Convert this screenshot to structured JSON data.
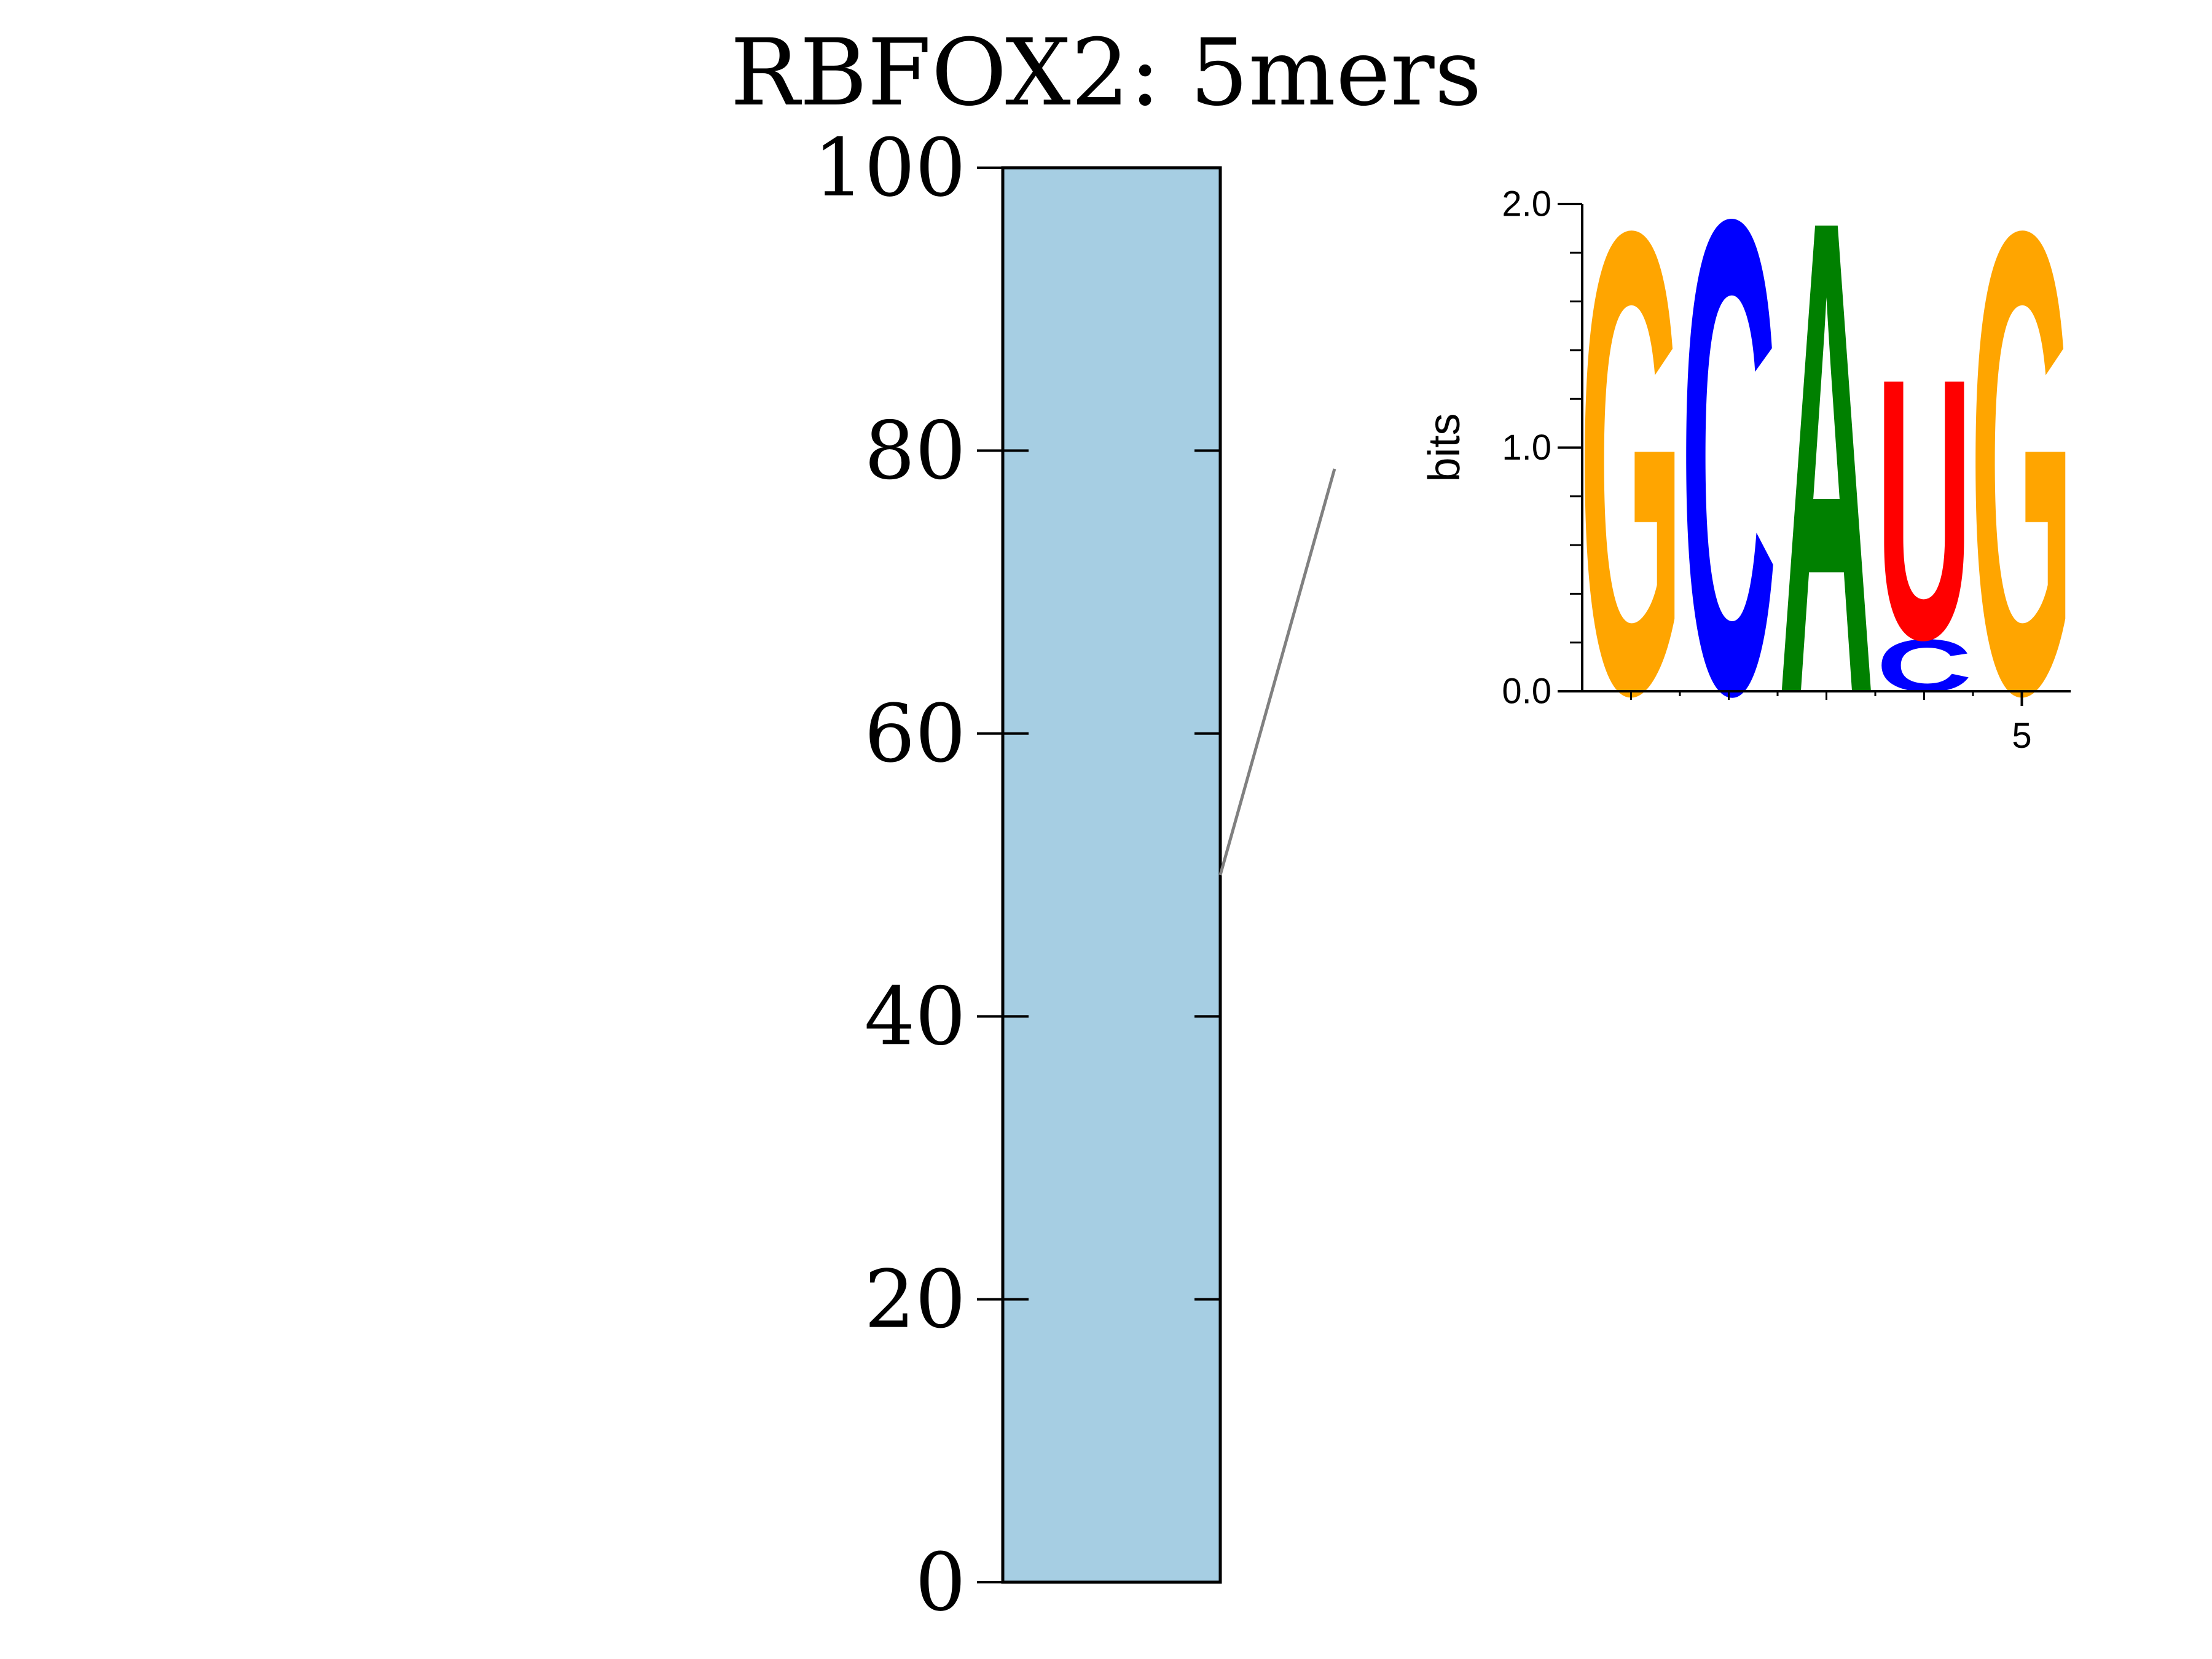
{
  "chart_data": {
    "type": "bar",
    "title": "RBFOX2: 5mers",
    "xlabel": "",
    "ylabel": "",
    "ylim": [
      0,
      100
    ],
    "yticks": [
      "0",
      "20",
      "40",
      "60",
      "80",
      "100"
    ],
    "segments": [
      {
        "bottom": 0,
        "top": 100,
        "color": "#a6cee3"
      }
    ],
    "annotation_anchor_value": 50,
    "inset_logo": {
      "type": "sequence-logo",
      "ylabel": "bits",
      "ylim": [
        0,
        2
      ],
      "yticks": [
        "0.0",
        "1.0",
        "2.0"
      ],
      "xticks": [
        "5"
      ],
      "positions": [
        {
          "pos": 1,
          "letters": [
            {
              "char": "G",
              "bits": 1.95,
              "color": "#ffa500"
            }
          ]
        },
        {
          "pos": 2,
          "letters": [
            {
              "char": "C",
              "bits": 2.0,
              "color": "#0000ff"
            }
          ]
        },
        {
          "pos": 3,
          "letters": [
            {
              "char": "A",
              "bits": 2.0,
              "color": "#008000"
            }
          ]
        },
        {
          "pos": 4,
          "letters": [
            {
              "char": "C",
              "bits": 0.22,
              "color": "#0000ff"
            },
            {
              "char": "U",
              "bits": 1.1,
              "color": "#ff0000"
            }
          ]
        },
        {
          "pos": 5,
          "letters": [
            {
              "char": "G",
              "bits": 1.95,
              "color": "#ffa500"
            }
          ]
        }
      ]
    }
  }
}
